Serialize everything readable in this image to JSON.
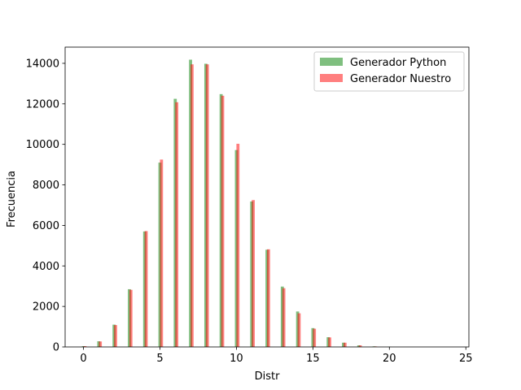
{
  "chart_data": {
    "type": "bar",
    "xlabel": "Distr",
    "ylabel": "Frecuencia",
    "xlim": [
      -1.2,
      25.2
    ],
    "ylim": [
      0,
      14800
    ],
    "xticks": [
      0,
      5,
      10,
      15,
      20,
      25
    ],
    "yticks": [
      0,
      2000,
      4000,
      6000,
      8000,
      10000,
      12000,
      14000
    ],
    "grid": false,
    "legend_position": "top-right",
    "bar_width": 0.2,
    "series": [
      {
        "name": "Generador Python",
        "color": "#008000",
        "opacity": 0.5,
        "x": [
          0,
          1,
          2,
          3,
          4,
          5,
          6,
          7,
          8,
          9,
          10,
          11,
          12,
          13,
          14,
          15,
          16,
          17,
          18,
          19,
          20
        ],
        "values": [
          40,
          280,
          1100,
          2850,
          5700,
          9100,
          12250,
          14180,
          13980,
          12480,
          9720,
          7180,
          4800,
          2980,
          1750,
          930,
          480,
          210,
          80,
          30,
          10
        ]
      },
      {
        "name": "Generador Nuestro",
        "color": "#ff0000",
        "opacity": 0.5,
        "x": [
          0.1,
          1.1,
          2.1,
          3.1,
          4.1,
          5.1,
          6.1,
          7.1,
          8.1,
          9.1,
          10.1,
          11.1,
          12.1,
          13.1,
          14.1,
          15.1,
          16.1,
          17.1,
          18.1,
          19.1
        ],
        "values": [
          40,
          270,
          1080,
          2820,
          5720,
          9250,
          12080,
          13950,
          13950,
          12400,
          10030,
          7250,
          4820,
          2900,
          1660,
          900,
          470,
          210,
          80,
          25
        ]
      }
    ]
  }
}
